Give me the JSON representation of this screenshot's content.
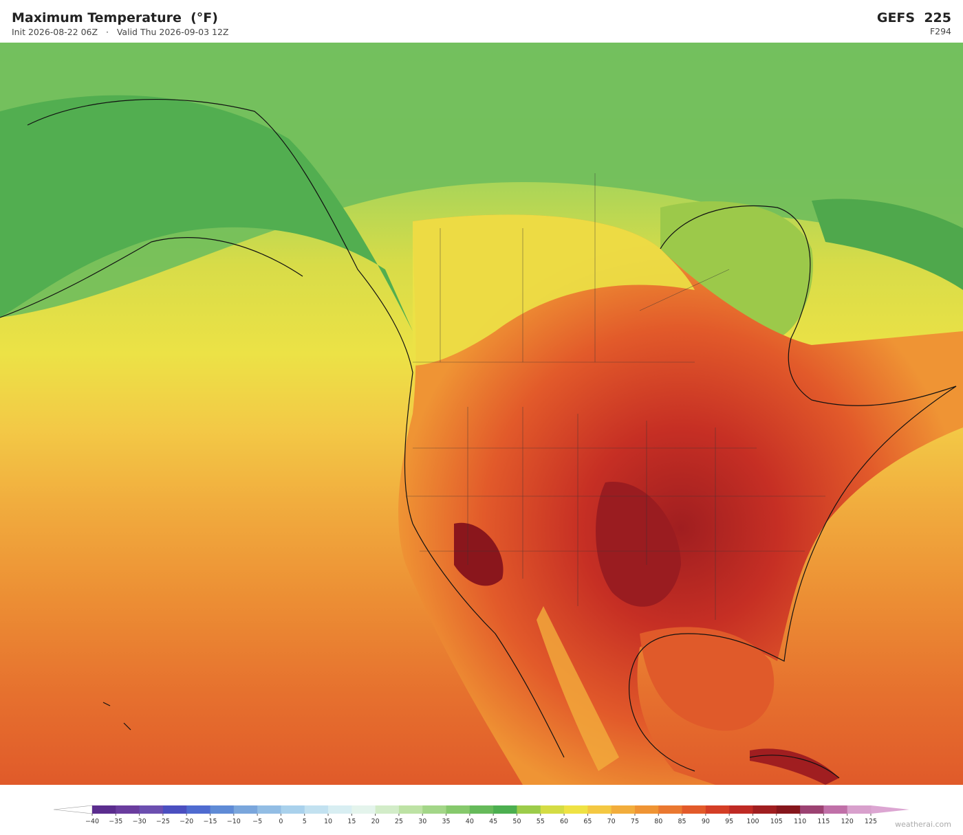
{
  "header": {
    "title": "Maximum Temperature  (°F)",
    "subtitle": "Init 2026-08-22 06Z   ·   Valid Thu 2026-09-03 12Z",
    "model": "GEFS  225",
    "forecast_hour": "F294"
  },
  "colorbar": {
    "ticks": [
      "−40",
      "−35",
      "−30",
      "−25",
      "−20",
      "−15",
      "−10",
      "−5",
      "0",
      "5",
      "10",
      "15",
      "20",
      "25",
      "30",
      "35",
      "40",
      "45",
      "50",
      "55",
      "60",
      "65",
      "70",
      "75",
      "80",
      "85",
      "90",
      "95",
      "100",
      "105",
      "110",
      "115",
      "120",
      "125"
    ],
    "colors": [
      "#5b2d8e",
      "#6a3d9e",
      "#6c4fb0",
      "#4b4fc0",
      "#4f6bd0",
      "#5f8bd6",
      "#7aa6dc",
      "#92bde4",
      "#a9d1ec",
      "#c2e1f0",
      "#d8eef2",
      "#e4f4ec",
      "#d2ecc8",
      "#bde2a4",
      "#a3d688",
      "#86c96c",
      "#66ba5a",
      "#4caf50",
      "#9ccc4a",
      "#d4dc44",
      "#efe244",
      "#f4c842",
      "#f2ad3c",
      "#ef9434",
      "#ea7830",
      "#e25a2a",
      "#d43e26",
      "#bf2a24",
      "#a01e20",
      "#86161c",
      "#9c4272",
      "#c070a8",
      "#d8a0cc"
    ],
    "under_color": "#ffffff",
    "over_color": "#dca6d2"
  },
  "footer": {
    "watermark": "weatherai.com"
  }
}
